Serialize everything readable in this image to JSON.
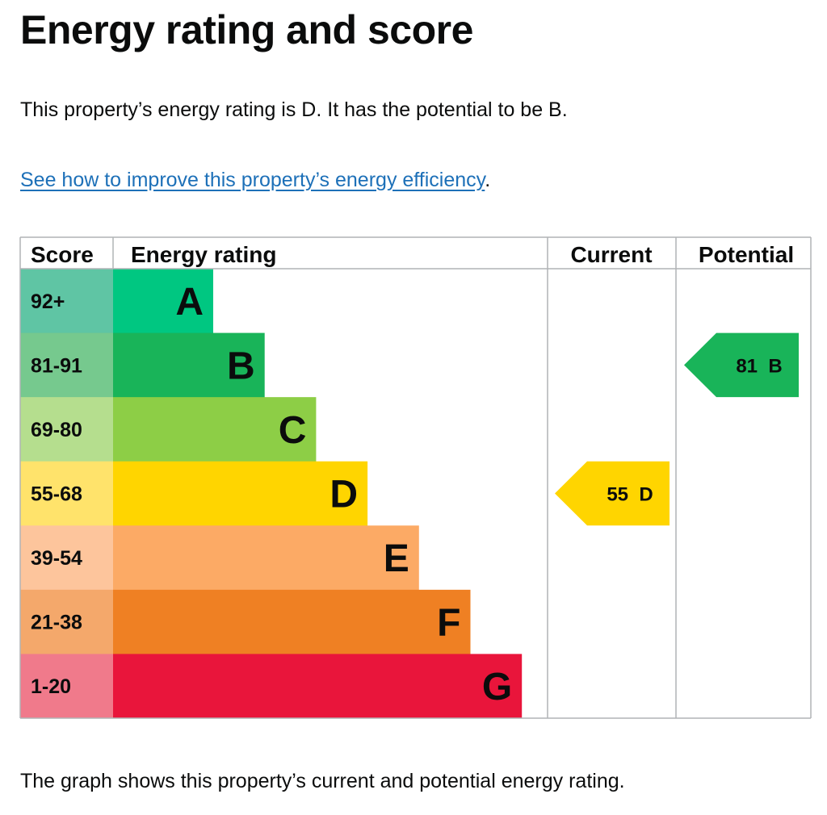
{
  "title": "Energy rating and score",
  "summary": "This property’s energy rating is D. It has the potential to be B.",
  "improve_link": "See how to improve this property’s energy efficiency",
  "improve_link_suffix": ".",
  "caption": "The graph shows this property’s current and potential energy rating.",
  "chart_data": {
    "type": "bar",
    "headers": {
      "score": "Score",
      "rating": "Energy rating",
      "current": "Current",
      "potential": "Potential"
    },
    "bands": [
      {
        "letter": "A",
        "score": "92+",
        "color": "#00c781",
        "score_color": "#5fc5a4"
      },
      {
        "letter": "B",
        "score": "81-91",
        "color": "#19b459",
        "score_color": "#76c98e"
      },
      {
        "letter": "C",
        "score": "69-80",
        "color": "#8dce46",
        "score_color": "#b5de8e"
      },
      {
        "letter": "D",
        "score": "55-68",
        "color": "#ffd500",
        "score_color": "#ffe36b"
      },
      {
        "letter": "E",
        "score": "39-54",
        "color": "#fcaa65",
        "score_color": "#fdc59c"
      },
      {
        "letter": "F",
        "score": "21-38",
        "color": "#ef8023",
        "score_color": "#f4a86b"
      },
      {
        "letter": "G",
        "score": "1-20",
        "color": "#e9153b",
        "score_color": "#f07a8b"
      }
    ],
    "current": {
      "score": 55,
      "letter": "D",
      "label": "55  D"
    },
    "potential": {
      "score": 81,
      "letter": "B",
      "label": "81  B"
    }
  }
}
